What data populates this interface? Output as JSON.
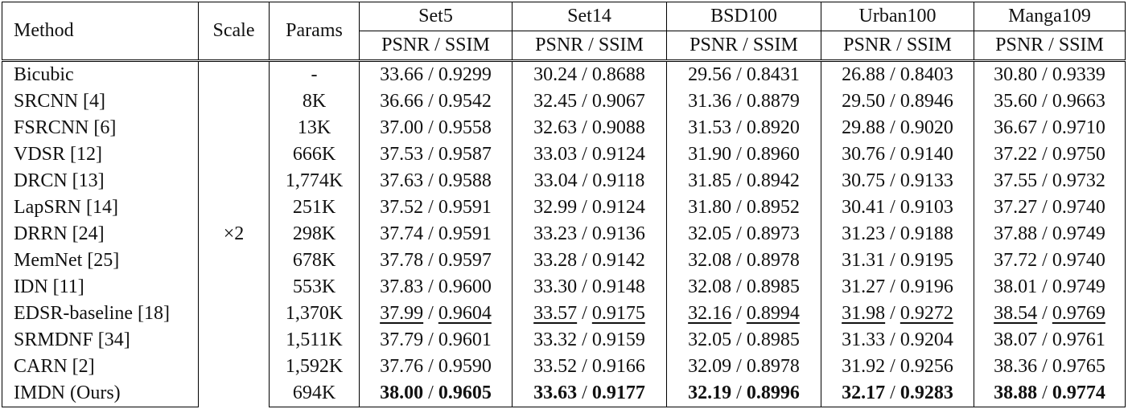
{
  "header": {
    "method": "Method",
    "scale": "Scale",
    "params": "Params",
    "datasets": [
      "Set5",
      "Set14",
      "BSD100",
      "Urban100",
      "Manga109"
    ],
    "metric": "PSNR / SSIM"
  },
  "scale_value": "×2",
  "rows": [
    {
      "method": "Bicubic",
      "params": "-",
      "results": [
        [
          "33.66",
          "0.9299"
        ],
        [
          "30.24",
          "0.8688"
        ],
        [
          "29.56",
          "0.8431"
        ],
        [
          "26.88",
          "0.8403"
        ],
        [
          "30.80",
          "0.9339"
        ]
      ]
    },
    {
      "method": "SRCNN [4]",
      "params": "8K",
      "results": [
        [
          "36.66",
          "0.9542"
        ],
        [
          "32.45",
          "0.9067"
        ],
        [
          "31.36",
          "0.8879"
        ],
        [
          "29.50",
          "0.8946"
        ],
        [
          "35.60",
          "0.9663"
        ]
      ]
    },
    {
      "method": "FSRCNN [6]",
      "params": "13K",
      "results": [
        [
          "37.00",
          "0.9558"
        ],
        [
          "32.63",
          "0.9088"
        ],
        [
          "31.53",
          "0.8920"
        ],
        [
          "29.88",
          "0.9020"
        ],
        [
          "36.67",
          "0.9710"
        ]
      ]
    },
    {
      "method": "VDSR [12]",
      "params": "666K",
      "results": [
        [
          "37.53",
          "0.9587"
        ],
        [
          "33.03",
          "0.9124"
        ],
        [
          "31.90",
          "0.8960"
        ],
        [
          "30.76",
          "0.9140"
        ],
        [
          "37.22",
          "0.9750"
        ]
      ]
    },
    {
      "method": "DRCN [13]",
      "params": "1,774K",
      "results": [
        [
          "37.63",
          "0.9588"
        ],
        [
          "33.04",
          "0.9118"
        ],
        [
          "31.85",
          "0.8942"
        ],
        [
          "30.75",
          "0.9133"
        ],
        [
          "37.55",
          "0.9732"
        ]
      ]
    },
    {
      "method": "LapSRN [14]",
      "params": "251K",
      "results": [
        [
          "37.52",
          "0.9591"
        ],
        [
          "32.99",
          "0.9124"
        ],
        [
          "31.80",
          "0.8952"
        ],
        [
          "30.41",
          "0.9103"
        ],
        [
          "37.27",
          "0.9740"
        ]
      ]
    },
    {
      "method": "DRRN [24]",
      "params": "298K",
      "results": [
        [
          "37.74",
          "0.9591"
        ],
        [
          "33.23",
          "0.9136"
        ],
        [
          "32.05",
          "0.8973"
        ],
        [
          "31.23",
          "0.9188"
        ],
        [
          "37.88",
          "0.9749"
        ]
      ]
    },
    {
      "method": "MemNet [25]",
      "params": "678K",
      "results": [
        [
          "37.78",
          "0.9597"
        ],
        [
          "33.28",
          "0.9142"
        ],
        [
          "32.08",
          "0.8978"
        ],
        [
          "31.31",
          "0.9195"
        ],
        [
          "37.72",
          "0.9740"
        ]
      ]
    },
    {
      "method": "IDN [11]",
      "params": "553K",
      "results": [
        [
          "37.83",
          "0.9600"
        ],
        [
          "33.30",
          "0.9148"
        ],
        [
          "32.08",
          "0.8985"
        ],
        [
          "31.27",
          "0.9196"
        ],
        [
          "38.01",
          "0.9749"
        ]
      ]
    },
    {
      "method": "EDSR-baseline [18]",
      "params": "1,370K",
      "style": "underline",
      "results": [
        [
          "37.99",
          "0.9604"
        ],
        [
          "33.57",
          "0.9175"
        ],
        [
          "32.16",
          "0.8994"
        ],
        [
          "31.98",
          "0.9272"
        ],
        [
          "38.54",
          "0.9769"
        ]
      ]
    },
    {
      "method": "SRMDNF [34]",
      "params": "1,511K",
      "results": [
        [
          "37.79",
          "0.9601"
        ],
        [
          "33.32",
          "0.9159"
        ],
        [
          "32.05",
          "0.8985"
        ],
        [
          "31.33",
          "0.9204"
        ],
        [
          "38.07",
          "0.9761"
        ]
      ]
    },
    {
      "method": "CARN [2]",
      "params": "1,592K",
      "results": [
        [
          "37.76",
          "0.9590"
        ],
        [
          "33.52",
          "0.9166"
        ],
        [
          "32.09",
          "0.8978"
        ],
        [
          "31.92",
          "0.9256"
        ],
        [
          "38.36",
          "0.9765"
        ]
      ]
    },
    {
      "method": "IMDN (Ours)",
      "params": "694K",
      "style": "bold",
      "results": [
        [
          "38.00",
          "0.9605"
        ],
        [
          "33.63",
          "0.9177"
        ],
        [
          "32.19",
          "0.8996"
        ],
        [
          "32.17",
          "0.9283"
        ],
        [
          "38.88",
          "0.9774"
        ]
      ]
    }
  ]
}
